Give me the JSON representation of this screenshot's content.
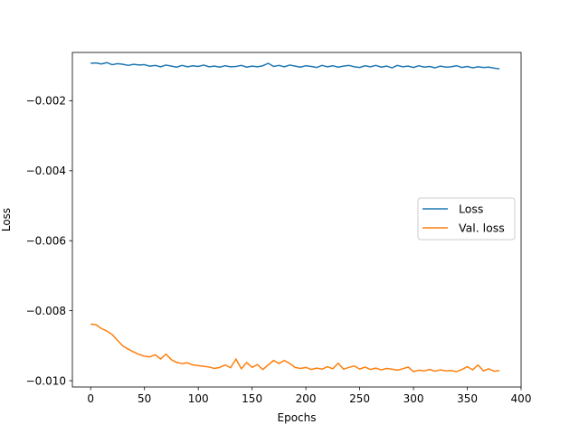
{
  "chart_data": {
    "type": "line",
    "xlabel": "Epochs",
    "ylabel": "Loss",
    "xlim": [
      -17,
      400
    ],
    "ylim": [
      -0.01018,
      -0.00062
    ],
    "xticks": [
      0,
      50,
      100,
      150,
      200,
      250,
      300,
      350,
      400
    ],
    "xtick_labels": [
      "0",
      "50",
      "100",
      "150",
      "200",
      "250",
      "300",
      "350",
      "400"
    ],
    "yticks": [
      -0.002,
      -0.004,
      -0.006,
      -0.008,
      -0.01
    ],
    "ytick_labels": [
      "−0.002",
      "−0.004",
      "−0.006",
      "−0.008",
      "−0.010"
    ],
    "grid": false,
    "legend_position": "center-right",
    "series": [
      {
        "name": "Loss",
        "color": "#1f77b4",
        "x": [
          0,
          5,
          10,
          15,
          20,
          25,
          30,
          35,
          40,
          45,
          50,
          55,
          60,
          65,
          70,
          75,
          80,
          85,
          90,
          95,
          100,
          105,
          110,
          115,
          120,
          125,
          130,
          135,
          140,
          145,
          150,
          155,
          160,
          165,
          170,
          175,
          180,
          185,
          190,
          195,
          200,
          205,
          210,
          215,
          220,
          225,
          230,
          235,
          240,
          245,
          250,
          255,
          260,
          265,
          270,
          275,
          280,
          285,
          290,
          295,
          300,
          305,
          310,
          315,
          320,
          325,
          330,
          335,
          340,
          345,
          350,
          355,
          360,
          365,
          370,
          375,
          380
        ],
        "y": [
          -0.00093,
          -0.00092,
          -0.00095,
          -0.00091,
          -0.00097,
          -0.00094,
          -0.00096,
          -0.00099,
          -0.00096,
          -0.00098,
          -0.00097,
          -0.00101,
          -0.00099,
          -0.00103,
          -0.00098,
          -0.00101,
          -0.00104,
          -0.00099,
          -0.00103,
          -0.001,
          -0.00102,
          -0.00098,
          -0.00103,
          -0.00101,
          -0.00104,
          -0.001,
          -0.00103,
          -0.00102,
          -0.00099,
          -0.00104,
          -0.00101,
          -0.00103,
          -0.001,
          -0.00093,
          -0.00102,
          -0.00099,
          -0.00103,
          -0.00098,
          -0.00101,
          -0.00104,
          -0.001,
          -0.00102,
          -0.00105,
          -0.00099,
          -0.00103,
          -0.001,
          -0.00104,
          -0.00101,
          -0.00099,
          -0.00103,
          -0.00105,
          -0.001,
          -0.00103,
          -0.00099,
          -0.00104,
          -0.00101,
          -0.00106,
          -0.00099,
          -0.00103,
          -0.00101,
          -0.00105,
          -0.001,
          -0.00104,
          -0.00102,
          -0.00106,
          -0.00101,
          -0.00104,
          -0.00103,
          -0.001,
          -0.00105,
          -0.00102,
          -0.00106,
          -0.00103,
          -0.00105,
          -0.00104,
          -0.00107,
          -0.00109
        ]
      },
      {
        "name": "Val. loss",
        "color": "#ff7f0e",
        "x": [
          0,
          5,
          10,
          15,
          20,
          25,
          30,
          35,
          40,
          45,
          50,
          55,
          60,
          65,
          70,
          75,
          80,
          85,
          90,
          95,
          100,
          105,
          110,
          115,
          120,
          125,
          130,
          135,
          140,
          145,
          150,
          155,
          160,
          165,
          170,
          175,
          180,
          185,
          190,
          195,
          200,
          205,
          210,
          215,
          220,
          225,
          230,
          235,
          240,
          245,
          250,
          255,
          260,
          265,
          270,
          275,
          280,
          285,
          290,
          295,
          300,
          305,
          310,
          315,
          320,
          325,
          330,
          335,
          340,
          345,
          350,
          355,
          360,
          365,
          370,
          375,
          380
        ],
        "y": [
          -0.00838,
          -0.0084,
          -0.00851,
          -0.00858,
          -0.00868,
          -0.00885,
          -0.00901,
          -0.0091,
          -0.00918,
          -0.00925,
          -0.0093,
          -0.00932,
          -0.00926,
          -0.00938,
          -0.00924,
          -0.0094,
          -0.00948,
          -0.00951,
          -0.00949,
          -0.00955,
          -0.00957,
          -0.00959,
          -0.00961,
          -0.00965,
          -0.00962,
          -0.00955,
          -0.00963,
          -0.00938,
          -0.00966,
          -0.00948,
          -0.00962,
          -0.00954,
          -0.00968,
          -0.00955,
          -0.00942,
          -0.00951,
          -0.00942,
          -0.00951,
          -0.00962,
          -0.00965,
          -0.00962,
          -0.00968,
          -0.00964,
          -0.00967,
          -0.0096,
          -0.00966,
          -0.0095,
          -0.00967,
          -0.00962,
          -0.00958,
          -0.00967,
          -0.00961,
          -0.00968,
          -0.00964,
          -0.00969,
          -0.00965,
          -0.00967,
          -0.0097,
          -0.00966,
          -0.00961,
          -0.00974,
          -0.0097,
          -0.00972,
          -0.00968,
          -0.00973,
          -0.00969,
          -0.00972,
          -0.00971,
          -0.00974,
          -0.00968,
          -0.0096,
          -0.00969,
          -0.00955,
          -0.00972,
          -0.00966,
          -0.00973,
          -0.00971
        ]
      }
    ]
  }
}
